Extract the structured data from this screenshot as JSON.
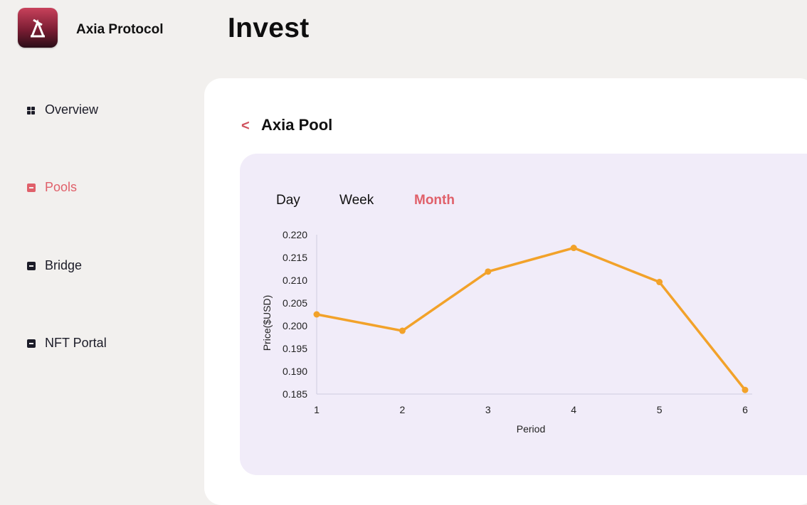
{
  "app": {
    "brand": "Axia Protocol",
    "page_title": "Invest"
  },
  "sidebar": {
    "items": [
      {
        "label": "Overview",
        "icon": "grid-icon",
        "active": false
      },
      {
        "label": "Pools",
        "icon": "square-icon",
        "active": true
      },
      {
        "label": "Bridge",
        "icon": "square-icon",
        "active": false
      },
      {
        "label": "NFT Portal",
        "icon": "square-icon",
        "active": false
      }
    ]
  },
  "pool": {
    "back_label": "<",
    "title": "Axia Pool"
  },
  "tabs": [
    {
      "label": "Day",
      "active": false
    },
    {
      "label": "Week",
      "active": false
    },
    {
      "label": "Month",
      "active": true
    }
  ],
  "colors": {
    "accent": "#e0606a",
    "line": "#f2a22a",
    "card_bg": "#f1ecf9"
  },
  "chart_data": {
    "type": "line",
    "title": "",
    "xlabel": "Period",
    "ylabel": "Price($USD)",
    "x": [
      1,
      2,
      3,
      4,
      5,
      6
    ],
    "series": [
      {
        "values": [
          0.2025,
          0.1989,
          0.2119,
          0.2171,
          0.2096,
          0.1859
        ]
      }
    ],
    "ylim": [
      0.185,
      0.22
    ],
    "yticks": [
      "0.220",
      "0.215",
      "0.210",
      "0.205",
      "0.200",
      "0.195",
      "0.190",
      "0.185"
    ],
    "xticks": [
      "1",
      "2",
      "3",
      "4",
      "5",
      "6"
    ],
    "grid": false,
    "legend": "none"
  }
}
